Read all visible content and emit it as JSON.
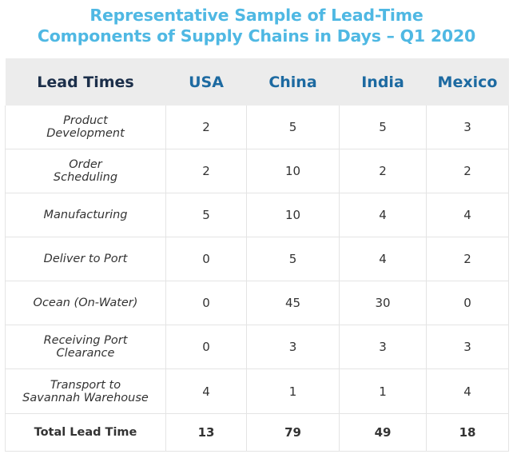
{
  "title": {
    "line1": "Representative Sample of Lead-Time",
    "line2": "Components of Supply Chains in Days – Q1 2020"
  },
  "colors": {
    "title": "#4fb8e3",
    "header_bg": "#ececec",
    "header_label": "#1c2f4a",
    "header_country": "#1d6aa1",
    "grid": "#e4e4e4",
    "text": "#333333"
  },
  "chart_data": {
    "type": "table",
    "title": "Representative Sample of Lead-Time Components of Supply Chains in Days – Q1 2020",
    "columns": [
      "Lead Times",
      "USA",
      "China",
      "India",
      "Mexico"
    ],
    "rows": [
      {
        "label_lines": [
          "Product",
          "Development"
        ],
        "values": [
          "2",
          "5",
          "5",
          "3"
        ]
      },
      {
        "label_lines": [
          "Order",
          "Scheduling"
        ],
        "values": [
          "2",
          "10",
          "2",
          "2"
        ]
      },
      {
        "label_lines": [
          "Manufacturing"
        ],
        "values": [
          "5",
          "10",
          "4",
          "4"
        ]
      },
      {
        "label_lines": [
          "Deliver to Port"
        ],
        "values": [
          "0",
          "5",
          "4",
          "2"
        ]
      },
      {
        "label_lines": [
          "Ocean (On-Water)"
        ],
        "values": [
          "0",
          "45",
          "30",
          "0"
        ]
      },
      {
        "label_lines": [
          "Receiving Port",
          "Clearance"
        ],
        "values": [
          "0",
          "3",
          "3",
          "3"
        ]
      },
      {
        "label_lines": [
          "Transport to",
          "Savannah Warehouse"
        ],
        "values": [
          "4",
          "1",
          "1",
          "4"
        ]
      }
    ],
    "total": {
      "label": "Total Lead Time",
      "values": [
        "13",
        "79",
        "49",
        "18"
      ]
    }
  }
}
